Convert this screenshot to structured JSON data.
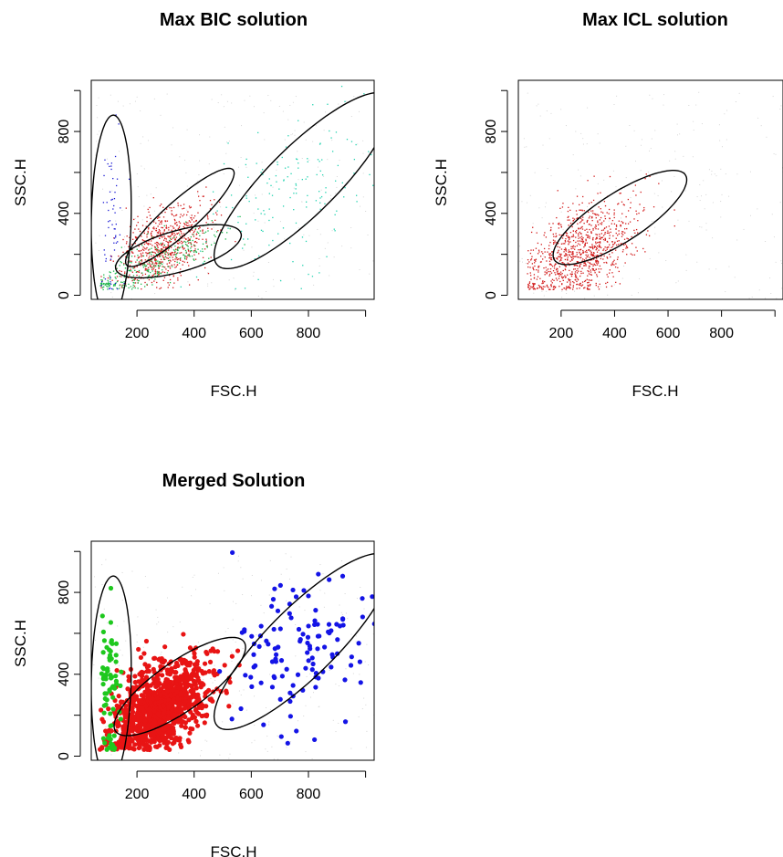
{
  "chart_data": [
    {
      "type": "scatter",
      "title": "Max BIC solution",
      "xlabel": "FSC.H",
      "ylabel": "SSC.H",
      "xlim": [
        40,
        1030
      ],
      "ylim": [
        -20,
        1050
      ],
      "x_ticks": [
        "200",
        "400",
        "600",
        "800"
      ],
      "y_ticks": [
        "0",
        "400",
        "800"
      ],
      "grid": false,
      "legend": "none",
      "point_style": "small",
      "series": [
        {
          "color": "#d21a1a",
          "center": [
            290,
            240
          ],
          "spread": [
            80,
            90
          ],
          "n": 700
        },
        {
          "color": "#19b84a",
          "center": [
            260,
            160
          ],
          "spread": [
            120,
            55
          ],
          "n": 300
        },
        {
          "color": "#22d3b0",
          "center": [
            760,
            520
          ],
          "spread": [
            150,
            200
          ],
          "n": 160
        },
        {
          "color": "#1a1ad4",
          "center": [
            110,
            280
          ],
          "spread": [
            20,
            230
          ],
          "n": 60
        }
      ],
      "ellipses": [
        {
          "center": [
            110,
            380
          ],
          "sd": [
            35,
            250
          ],
          "rho": 0.1
        },
        {
          "center": [
            350,
            380
          ],
          "sd": [
            95,
            120
          ],
          "rho": 0.9
        },
        {
          "center": [
            345,
            215
          ],
          "sd": [
            110,
            65
          ],
          "rho": 0.6
        },
        {
          "center": [
            780,
            560
          ],
          "sd": [
            155,
            215
          ],
          "rho": 0.85
        }
      ]
    },
    {
      "type": "scatter",
      "title": "Max ICL solution",
      "xlabel": "FSC.H",
      "ylabel": "SSC.H",
      "xlim": [
        40,
        1030
      ],
      "ylim": [
        -20,
        1050
      ],
      "x_ticks": [
        "200",
        "400",
        "600",
        "800"
      ],
      "y_ticks": [
        "0",
        "400",
        "800"
      ],
      "grid": false,
      "legend": "none",
      "point_style": "small",
      "series": [
        {
          "color": "#d21a1a",
          "center": [
            270,
            220
          ],
          "spread": [
            100,
            110
          ],
          "n": 950
        }
      ],
      "ellipses": [
        {
          "center": [
            420,
            380
          ],
          "sd": [
            125,
            115
          ],
          "rho": 0.8
        }
      ]
    },
    {
      "type": "scatter",
      "title": "Merged Solution",
      "xlabel": "FSC.H",
      "ylabel": "SSC.H",
      "xlim": [
        40,
        1030
      ],
      "ylim": [
        -20,
        1050
      ],
      "x_ticks": [
        "200",
        "400",
        "600",
        "800"
      ],
      "y_ticks": [
        "0",
        "400",
        "800"
      ],
      "grid": false,
      "legend": "none",
      "point_style": "large",
      "series": [
        {
          "color": "#e81414",
          "center": [
            280,
            230
          ],
          "spread": [
            85,
            100
          ],
          "n": 1100
        },
        {
          "color": "#1ec81e",
          "center": [
            105,
            340
          ],
          "spread": [
            18,
            180
          ],
          "n": 75
        },
        {
          "color": "#1414e6",
          "center": [
            780,
            540
          ],
          "spread": [
            120,
            190
          ],
          "n": 120
        }
      ],
      "ellipses": [
        {
          "center": [
            110,
            380
          ],
          "sd": [
            35,
            250
          ],
          "rho": 0.1
        },
        {
          "center": [
            350,
            340
          ],
          "sd": [
            115,
            120
          ],
          "rho": 0.8
        },
        {
          "center": [
            780,
            560
          ],
          "sd": [
            155,
            215
          ],
          "rho": 0.85
        }
      ]
    }
  ]
}
